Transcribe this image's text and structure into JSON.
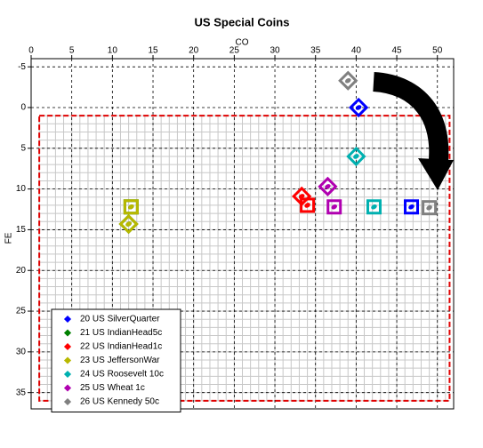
{
  "chart_data": {
    "type": "scatter",
    "title": "US Special Coins",
    "x_label": "CO",
    "y_label": "FE",
    "xlim": [
      0,
      52
    ],
    "ylim": [
      -6,
      37
    ],
    "y_inverted": true,
    "x_axis_position": "top",
    "xticks": [
      0,
      5,
      10,
      15,
      20,
      25,
      30,
      35,
      40,
      45,
      50
    ],
    "yticks": [
      -5,
      0,
      5,
      10,
      15,
      20,
      25,
      30,
      35
    ],
    "grid": true,
    "minor_grid_step": 1,
    "legend_position": "lower left",
    "markers": [
      "diamond",
      "square"
    ],
    "highlight_box": {
      "x": [
        1,
        51.5
      ],
      "y": [
        1,
        36
      ],
      "color": "#e00000"
    },
    "series": [
      {
        "name": "20 US SilverQuarter",
        "color": "#0000ff",
        "x": [
          40.3,
          46.8
        ],
        "y": [
          0,
          12.2
        ]
      },
      {
        "name": "21 US IndianHead5c",
        "color": "#008000",
        "x": [
          12,
          12.3
        ],
        "y": [
          14.3,
          12.2
        ]
      },
      {
        "name": "22 US IndianHead1c",
        "color": "#ff0000",
        "x": [
          33.3,
          34
        ],
        "y": [
          10.9,
          12
        ]
      },
      {
        "name": "23 US JeffersonWar",
        "color": "#b8b800",
        "x": [
          12,
          12.3
        ],
        "y": [
          14.3,
          12.2
        ]
      },
      {
        "name": "24 US Roosevelt 10c",
        "color": "#00b0b0",
        "x": [
          40,
          42.2
        ],
        "y": [
          6,
          12.2
        ]
      },
      {
        "name": "25 US Wheat 1c",
        "color": "#b000b0",
        "x": [
          36.5,
          37.3
        ],
        "y": [
          9.7,
          12.2
        ]
      },
      {
        "name": "26 US Kennedy 50c",
        "color": "#808080",
        "x": [
          39,
          49
        ],
        "y": [
          -3.3,
          12.3
        ]
      }
    ]
  }
}
